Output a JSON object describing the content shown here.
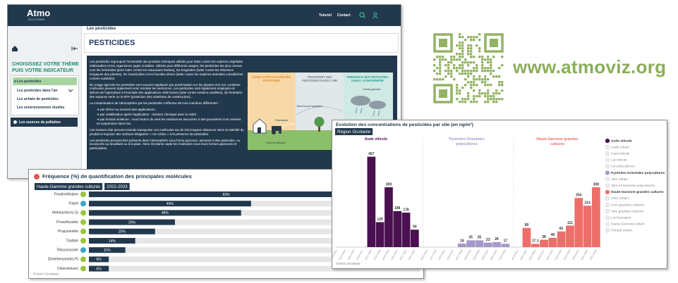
{
  "app": {
    "logo": "Atmo",
    "logo_sub": "OCCITANIE",
    "nav": [
      "Tutoriel",
      "Contact"
    ],
    "sidebar": {
      "heading": "CHOISISSEZ VOTRE THÈME PUIS VOTRE INDICATEUR",
      "items": [
        "Les pesticides",
        "Les pesticides dans l'air",
        "Les achats de pesticides",
        "Les environnements étudiés"
      ],
      "footer_item": "Les sources de pollution"
    },
    "breadcrumb": "Les pesticides",
    "title": "PESTICIDES",
    "paragraphs": [
      "Les pesticides regroupent l'ensemble des produits chimiques utilisés pour lutter contre les espèces végétales indésirables et les organismes jugés nuisibles. Utilisés pour différents usages, les pesticides les plus connus sont les herbicides (pour lutter contre les mauvaises herbes), les fongicides (lutter contre les infections fongiques des plantes), les insecticides et les biocides divers (lutter contre les espèces animales considérées comme nuisibles).",
      "En usage agricole les pesticides sont souvent appliqués par pulvérisation sur les plantes et le sol, certaines molécules peuvent également venir enrober les semences. Les pesticides sont également employés en dehors de l'agriculture à l'exemple des applications vétérinaires (lutte contre certains nuisibles), de l'entretien des espaces verts ou le BTP (protection des matériaux de construction)...",
      "La contamination de l'atmosphère par les pesticides s'effectue de trois manières différentes :"
    ],
    "bullets": [
      "par dérive au moment des applications ;",
      "par volatilisation après l'application : réaction chimique avec le soleil ;",
      "par érosion éolienne : sous l'action du vent les substances associées à des poussières sont remises en suspension dans l'air."
    ],
    "paragraphs_end": [
      "Les masses d'air peuvent ensuite transporter ces molécules sur de très longues distances selon la stabilité du produit et exposer des surfaces éloignées « non cibles » à la présence de pesticides.",
      "Les pesticides peuvent être présents dans l'atmosphère sous forme gazeuse, associés à des particules, ou incorporés au brouillard ou à la pluie. Atmo Occitanie capte les molécules sous leurs formes gazeuses et particulaires."
    ],
    "illustration": {
      "panels": [
        "ZONE D'APPLICATION DES PESTICIDES",
        "TRANSFERT DES PESTICIDES DANS L'AIR",
        "PRÉSENCE DES PESTICIDES DANS L'ATMOSPHÈRE"
      ],
      "labels": [
        "Pulvérisation",
        "Dérive lors de l'application",
        "Envol de particules",
        "Formes gazeuses",
        "Formes particulaires"
      ]
    }
  },
  "qr_site": "www.atmoviz.org",
  "chart_data": [
    {
      "type": "hbar",
      "title": "Fréquence (%) de quantification des principales molécules",
      "tags": [
        "Haute-Garonne grandes cultures",
        "2022-2023"
      ],
      "categories": [
        "Pendiméthaline",
        "Folpel",
        "Métolachlore(-S)",
        "Prosulfocarbe",
        "Propyzamide",
        "Triallate",
        "Tebuconazole",
        "Dimethenamide(-P)",
        "Chlorotoluron"
      ],
      "values": [
        83,
        49,
        46,
        26,
        20,
        14,
        11,
        6,
        6
      ],
      "value_labels": [
        "83%",
        "49%",
        "46%",
        "26%",
        "20%",
        "14%",
        "11%",
        "6%",
        "6%"
      ],
      "icon_colors": [
        "#9cc43c",
        "#3aa6c9",
        "#9cc43c",
        "#9cc43c",
        "#9cc43c",
        "#9cc43c",
        "#3aa6c9",
        "#9cc43c",
        "#9cc43c"
      ],
      "xlim": [
        0,
        100
      ],
      "color": "#22384d",
      "track_color": "#e6e6e6",
      "source": "©Atmo Occitanie"
    },
    {
      "type": "grouped-bar",
      "title": "Evolution des concentrations de pesticides par site (en ng/m³)",
      "tag": "Région Occitanie",
      "categories": [
        "2013-2014",
        "2014-2015",
        "2015-2016",
        "2016-2017",
        "2017-2018",
        "2018-2019",
        "2019-2020",
        "2020-2021",
        "2021-2022",
        "2022-2023"
      ],
      "ylim": [
        0,
        480
      ],
      "series": [
        {
          "name": "Aude viticole",
          "color": "#4a1050",
          "visible": true,
          "values": [
            null,
            null,
            null,
            null,
            467,
            129,
            309,
            186,
            178,
            90
          ]
        },
        {
          "name": "Aude urbain",
          "color": "#c9c9c9",
          "visible": false,
          "values": [
            null,
            null,
            null,
            null,
            null,
            null,
            null,
            null,
            null,
            null
          ]
        },
        {
          "name": "Gard viticole",
          "color": "#c9c9c9",
          "visible": false,
          "values": [
            null,
            null,
            null,
            null,
            null,
            null,
            null,
            null,
            null,
            null
          ]
        },
        {
          "name": "Lot viticole",
          "color": "#c9c9c9",
          "visible": false,
          "values": [
            null,
            null,
            null,
            null,
            null,
            null,
            null,
            null,
            null,
            null
          ]
        },
        {
          "name": "Lot polycultures",
          "color": "#c9c9c9",
          "visible": false,
          "values": [
            null,
            null,
            null,
            null,
            null,
            null,
            null,
            null,
            null,
            null
          ]
        },
        {
          "name": "Pyrénées-Orientales polycultures",
          "color": "#a597c9",
          "visible": true,
          "values": [
            null,
            null,
            null,
            null,
            18,
            35,
            35,
            23,
            26,
            17
          ]
        },
        {
          "name": "Tarn urbain",
          "color": "#c9c9c9",
          "visible": false,
          "values": [
            null,
            null,
            null,
            null,
            null,
            null,
            null,
            null,
            null,
            null
          ]
        },
        {
          "name": "Tarn-et-Garonne polycultures",
          "color": "#c9c9c9",
          "visible": false,
          "values": [
            null,
            null,
            null,
            null,
            null,
            null,
            null,
            null,
            null,
            null
          ]
        },
        {
          "name": "Haute-Garonne grandes cultures",
          "color": "#ee6e6a",
          "visible": true,
          "values": [
            null,
            99,
            17.1,
            38,
            48,
            81,
            111,
            254,
            214,
            309
          ]
        },
        {
          "name": "Gers urbain",
          "color": "#c9c9c9",
          "visible": false,
          "values": [
            null,
            null,
            null,
            null,
            null,
            null,
            null,
            null,
            null,
            null
          ]
        },
        {
          "name": "Gers grandes cultures",
          "color": "#c9c9c9",
          "visible": false,
          "values": [
            null,
            null,
            null,
            null,
            null,
            null,
            null,
            null,
            null,
            null
          ]
        },
        {
          "name": "Tarn grandes cultures",
          "color": "#c9c9c9",
          "visible": false,
          "values": [
            null,
            null,
            null,
            null,
            null,
            null,
            null,
            null,
            null,
            null
          ]
        },
        {
          "name": "Lot fourrages",
          "color": "#c9c9c9",
          "visible": false,
          "values": [
            null,
            null,
            null,
            null,
            null,
            null,
            null,
            null,
            null,
            null
          ]
        },
        {
          "name": "Haute-Garonne urbain",
          "color": "#c9c9c9",
          "visible": false,
          "values": [
            null,
            null,
            null,
            null,
            null,
            null,
            null,
            null,
            null,
            null
          ]
        },
        {
          "name": "Hérault urbain",
          "color": "#c9c9c9",
          "visible": false,
          "values": [
            null,
            null,
            null,
            null,
            null,
            null,
            null,
            null,
            null,
            null
          ]
        }
      ],
      "source": "©Atmo Occitanie"
    }
  ]
}
